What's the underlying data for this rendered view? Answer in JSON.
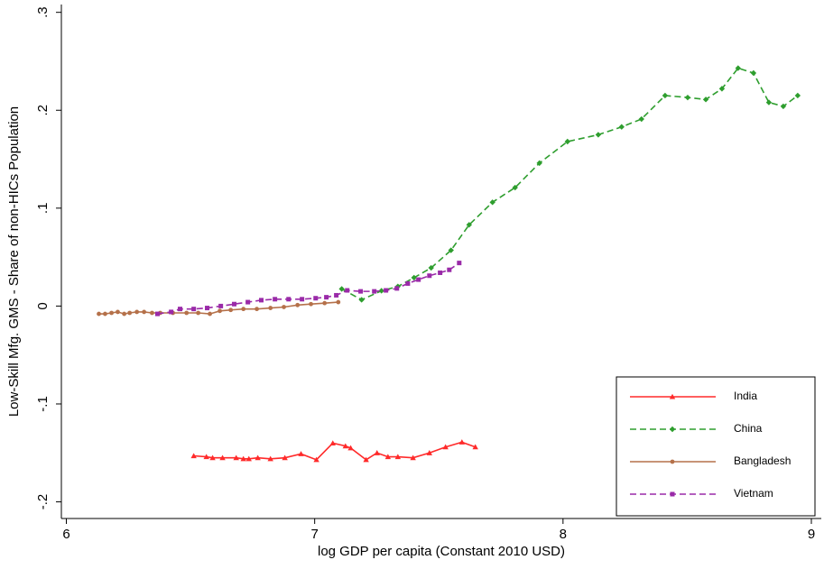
{
  "chart_data": {
    "type": "line",
    "x_label": "log GDP per capita (Constant 2010 USD)",
    "y_label": "Low-Skill Mfg. GMS - Share of non-HICs Population",
    "xlim": [
      5.98,
      9.04
    ],
    "ylim": [
      -0.217,
      0.308
    ],
    "xticks": [
      6,
      7,
      8,
      9
    ],
    "yticks": [
      {
        "value": -0.2,
        "label": "-.2"
      },
      {
        "value": -0.1,
        "label": "-.1"
      },
      0,
      {
        "value": 0.1,
        "label": ".1"
      },
      {
        "value": 0.2,
        "label": ".2"
      },
      {
        "value": 0.3,
        "label": ".3"
      }
    ],
    "grid": false,
    "legend": "lower right",
    "series": [
      {
        "name": "India",
        "color": "#ff2a2a",
        "marker": "triangle",
        "dash": "solid",
        "x": [
          6.513,
          6.564,
          6.589,
          6.629,
          6.684,
          6.713,
          6.735,
          6.771,
          6.822,
          6.88,
          6.945,
          7.007,
          7.073,
          7.124,
          7.145,
          7.207,
          7.251,
          7.295,
          7.335,
          7.396,
          7.462,
          7.527,
          7.593,
          7.647
        ],
        "y": [
          -0.153,
          -0.154,
          -0.155,
          -0.155,
          -0.155,
          -0.156,
          -0.156,
          -0.155,
          -0.156,
          -0.155,
          -0.151,
          -0.157,
          -0.14,
          -0.143,
          -0.145,
          -0.157,
          -0.15,
          -0.154,
          -0.154,
          -0.155,
          -0.15,
          -0.144,
          -0.139,
          -0.144
        ]
      },
      {
        "name": "China",
        "color": "#2e9e2e",
        "marker": "diamond",
        "dash": "dashed",
        "x": [
          7.109,
          7.189,
          7.269,
          7.335,
          7.4,
          7.469,
          7.549,
          7.622,
          7.716,
          7.807,
          7.905,
          8.018,
          8.142,
          8.236,
          8.316,
          8.411,
          8.502,
          8.575,
          8.64,
          8.705,
          8.767,
          8.829,
          8.887,
          8.945
        ],
        "y": [
          0.0175,
          0.0064,
          0.0156,
          0.02,
          0.029,
          0.039,
          0.057,
          0.083,
          0.106,
          0.121,
          0.146,
          0.168,
          0.175,
          0.183,
          0.191,
          0.215,
          0.213,
          0.211,
          0.222,
          0.243,
          0.238,
          0.208,
          0.204,
          0.215
        ]
      },
      {
        "name": "Bangladesh",
        "color": "#b5714a",
        "marker": "circle",
        "dash": "solid",
        "x": [
          6.131,
          6.156,
          6.182,
          6.207,
          6.233,
          6.255,
          6.284,
          6.313,
          6.345,
          6.378,
          6.429,
          6.484,
          6.531,
          6.578,
          6.618,
          6.662,
          6.713,
          6.767,
          6.822,
          6.876,
          6.931,
          6.985,
          7.04,
          7.095
        ],
        "y": [
          -0.008,
          -0.008,
          -0.007,
          -0.006,
          -0.008,
          -0.007,
          -0.006,
          -0.006,
          -0.007,
          -0.007,
          -0.007,
          -0.007,
          -0.007,
          -0.008,
          -0.005,
          -0.004,
          -0.003,
          -0.003,
          -0.002,
          -0.001,
          0.001,
          0.002,
          0.003,
          0.004
        ]
      },
      {
        "name": "Vietnam",
        "color": "#9a2aa8",
        "marker": "square",
        "dash": "dashed",
        "x": [
          6.367,
          6.422,
          6.458,
          6.513,
          6.567,
          6.622,
          6.676,
          6.731,
          6.785,
          6.84,
          6.895,
          6.949,
          7.004,
          7.047,
          7.087,
          7.131,
          7.185,
          7.24,
          7.287,
          7.331,
          7.375,
          7.418,
          7.462,
          7.505,
          7.542,
          7.582
        ],
        "y": [
          -0.008,
          -0.006,
          -0.003,
          -0.003,
          -0.002,
          0.0,
          0.002,
          0.004,
          0.006,
          0.007,
          0.007,
          0.007,
          0.008,
          0.009,
          0.011,
          0.016,
          0.015,
          0.015,
          0.016,
          0.018,
          0.023,
          0.027,
          0.031,
          0.034,
          0.037,
          0.044
        ]
      }
    ]
  }
}
